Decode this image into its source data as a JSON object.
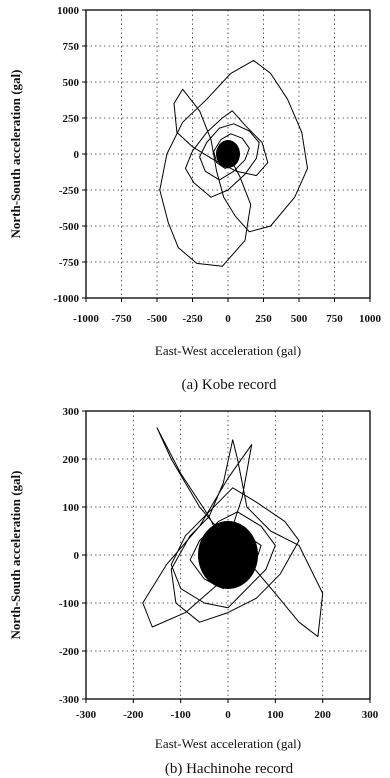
{
  "chart_data": [
    {
      "type": "line",
      "caption": "(a) Kobe record",
      "xlabel": "East-West acceleration (gal)",
      "ylabel": "North-South acceleration (gal)",
      "xlim": [
        -1000,
        1000
      ],
      "ylim": [
        -1000,
        1000
      ],
      "xticks": [
        -1000,
        -750,
        -500,
        -250,
        0,
        250,
        500,
        750,
        1000
      ],
      "yticks": [
        -1000,
        -750,
        -500,
        -250,
        0,
        250,
        500,
        750,
        1000
      ],
      "xtick_labels": [
        "-1000",
        "-750",
        "-500",
        "-250",
        "0",
        "250",
        "500",
        "750",
        "1000"
      ],
      "ytick_labels": [
        "-1000",
        "-750",
        "-500",
        "-250",
        "0",
        "250",
        "500",
        "750",
        "1000"
      ],
      "grid": true,
      "grid_style": "dotted",
      "series": [
        {
          "x": [
            0,
            80,
            160,
            120,
            -40,
            -220,
            -350,
            -420,
            -480,
            -430,
            -320,
            -150,
            20,
            180,
            300,
            420,
            520,
            560,
            470,
            300,
            150,
            50,
            -30,
            -80,
            -120,
            -200,
            -320,
            -380,
            -360,
            -250,
            -100,
            60,
            200,
            280,
            240,
            120,
            30,
            -40,
            -150,
            -250,
            -300,
            -240,
            -120,
            0,
            120,
            200,
            220,
            150,
            40,
            -60,
            -150,
            -200,
            -160,
            -60,
            40,
            120,
            150,
            100,
            20,
            -50,
            -100,
            -80,
            -20,
            40,
            80,
            60,
            10,
            -30,
            -50,
            -20,
            20,
            40,
            10,
            -10,
            0
          ],
          "y": [
            0,
            -150,
            -350,
            -600,
            -780,
            -760,
            -650,
            -480,
            -250,
            0,
            220,
            380,
            560,
            650,
            560,
            380,
            150,
            -100,
            -300,
            -500,
            -540,
            -430,
            -300,
            -120,
            100,
            300,
            450,
            350,
            150,
            50,
            -40,
            -120,
            -150,
            -60,
            80,
            200,
            300,
            250,
            150,
            20,
            -100,
            -200,
            -300,
            -250,
            -140,
            -30,
            80,
            160,
            210,
            180,
            80,
            -20,
            -120,
            -180,
            -120,
            -40,
            40,
            110,
            140,
            100,
            20,
            -60,
            -100,
            -70,
            -10,
            40,
            80,
            50,
            0,
            -40,
            -50,
            -10,
            20,
            10,
            0
          ]
        }
      ]
    },
    {
      "type": "line",
      "caption": "(b) Hachinohe record",
      "xlabel": "East-West acceleration (gal)",
      "ylabel": "North-South acceleration (gal)",
      "xlim": [
        -300,
        300
      ],
      "ylim": [
        -300,
        300
      ],
      "xticks": [
        -300,
        -200,
        -100,
        0,
        100,
        200,
        300
      ],
      "yticks": [
        -300,
        -200,
        -100,
        0,
        100,
        200,
        300
      ],
      "xtick_labels": [
        "-300",
        "-200",
        "-100",
        "0",
        "100",
        "200",
        "300"
      ],
      "ytick_labels": [
        "-300",
        "-200",
        "-100",
        "0",
        "100",
        "200",
        "300"
      ],
      "grid": true,
      "grid_style": "dotted",
      "series": [
        {
          "x": [
            0,
            -40,
            -100,
            -150,
            -120,
            -60,
            0,
            30,
            50,
            0,
            -60,
            -130,
            -180,
            -160,
            -90,
            -20,
            40,
            100,
            150,
            190,
            200,
            150,
            90,
            40,
            20,
            10,
            -10,
            -40,
            -80,
            -120,
            -110,
            -60,
            0,
            60,
            110,
            150,
            120,
            60,
            10,
            -40,
            -90,
            -120,
            -100,
            -50,
            0,
            40,
            80,
            100,
            70,
            20,
            -20,
            -60,
            -80,
            -50,
            -10,
            30,
            60,
            70,
            40,
            0,
            -30,
            -50,
            -30,
            0,
            20,
            40,
            20,
            0
          ],
          "y": [
            0,
            80,
            170,
            265,
            200,
            100,
            30,
            120,
            230,
            160,
            60,
            -20,
            -100,
            -150,
            -120,
            -60,
            -10,
            -80,
            -140,
            -170,
            -80,
            20,
            50,
            100,
            200,
            240,
            150,
            80,
            40,
            -30,
            -100,
            -140,
            -120,
            -90,
            -40,
            30,
            70,
            110,
            140,
            90,
            40,
            -20,
            -70,
            -100,
            -110,
            -70,
            -30,
            20,
            60,
            90,
            70,
            30,
            -10,
            -50,
            -70,
            -50,
            -10,
            20,
            40,
            50,
            30,
            0,
            -30,
            -40,
            -20,
            10,
            20,
            0
          ]
        }
      ]
    }
  ]
}
